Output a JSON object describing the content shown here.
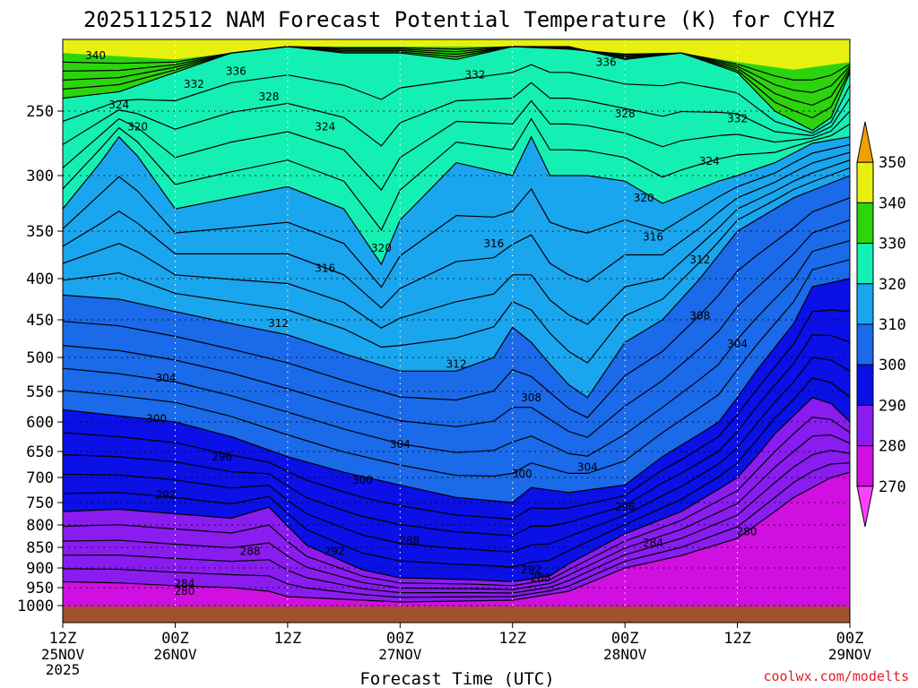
{
  "chart_data": {
    "type": "contour-filled",
    "title": "2025112512 NAM Forecast Potential Temperature (K) for CYHZ",
    "xlabel": "Forecast Time (UTC)",
    "ylabel": "",
    "credit": "coolwx.com/modelts",
    "x_range_hours": [
      0,
      84
    ],
    "y_range_hpa": [
      200,
      1000
    ],
    "y_ticks": [
      250,
      300,
      350,
      400,
      450,
      500,
      550,
      600,
      650,
      700,
      750,
      800,
      850,
      900,
      950,
      1000
    ],
    "x_ticks": [
      {
        "hour": 0,
        "time": "12Z",
        "date": "25NOV",
        "year": "2025"
      },
      {
        "hour": 12,
        "time": "00Z",
        "date": "26NOV",
        "year": ""
      },
      {
        "hour": 24,
        "time": "12Z",
        "date": "",
        "year": ""
      },
      {
        "hour": 36,
        "time": "00Z",
        "date": "27NOV",
        "year": ""
      },
      {
        "hour": 48,
        "time": "12Z",
        "date": "",
        "year": ""
      },
      {
        "hour": 60,
        "time": "00Z",
        "date": "28NOV",
        "year": ""
      },
      {
        "hour": 72,
        "time": "12Z",
        "date": "",
        "year": ""
      },
      {
        "hour": 84,
        "time": "00Z",
        "date": "29NOV",
        "year": ""
      }
    ],
    "colorbar": {
      "levels": [
        270,
        280,
        290,
        300,
        310,
        320,
        330,
        340,
        350
      ],
      "bands": [
        {
          "from": 260,
          "to": 270,
          "color": "#ff40ff"
        },
        {
          "from": 270,
          "to": 280,
          "color": "#d010e0"
        },
        {
          "from": 280,
          "to": 290,
          "color": "#8a1cf0"
        },
        {
          "from": 290,
          "to": 300,
          "color": "#0a10e6"
        },
        {
          "from": 300,
          "to": 310,
          "color": "#1a6aea"
        },
        {
          "from": 310,
          "to": 320,
          "color": "#1aa6ee"
        },
        {
          "from": 320,
          "to": 330,
          "color": "#14f0b4"
        },
        {
          "from": 330,
          "to": 340,
          "color": "#2cd40e"
        },
        {
          "from": 340,
          "to": 350,
          "color": "#e8f010"
        },
        {
          "from": 350,
          "to": 360,
          "color": "#f2a000"
        }
      ]
    },
    "contour_interval": 2,
    "series": [
      {
        "name": "theta_280",
        "values": [
          [
            0,
            935
          ],
          [
            6,
            938
          ],
          [
            12,
            945
          ],
          [
            18,
            950
          ],
          [
            22,
            960
          ],
          [
            24,
            975
          ],
          [
            36,
            990
          ],
          [
            48,
            985
          ],
          [
            54,
            960
          ],
          [
            60,
            900
          ],
          [
            66,
            870
          ],
          [
            72,
            830
          ],
          [
            78,
            740
          ],
          [
            82,
            700
          ],
          [
            84,
            690
          ]
        ]
      },
      {
        "name": "theta_290",
        "values": [
          [
            0,
            770
          ],
          [
            6,
            765
          ],
          [
            12,
            775
          ],
          [
            18,
            785
          ],
          [
            22,
            760
          ],
          [
            26,
            845
          ],
          [
            32,
            905
          ],
          [
            36,
            925
          ],
          [
            44,
            930
          ],
          [
            48,
            935
          ],
          [
            52,
            920
          ],
          [
            54,
            890
          ],
          [
            60,
            820
          ],
          [
            66,
            770
          ],
          [
            72,
            700
          ],
          [
            76,
            620
          ],
          [
            80,
            560
          ],
          [
            82,
            570
          ],
          [
            84,
            600
          ]
        ]
      },
      {
        "name": "theta_300",
        "values": [
          [
            0,
            580
          ],
          [
            6,
            590
          ],
          [
            12,
            600
          ],
          [
            18,
            625
          ],
          [
            24,
            660
          ],
          [
            30,
            690
          ],
          [
            36,
            715
          ],
          [
            42,
            740
          ],
          [
            48,
            750
          ],
          [
            50,
            720
          ],
          [
            54,
            730
          ],
          [
            60,
            715
          ],
          [
            64,
            660
          ],
          [
            70,
            600
          ],
          [
            74,
            520
          ],
          [
            78,
            455
          ],
          [
            80,
            410
          ],
          [
            84,
            400
          ]
        ]
      },
      {
        "name": "theta_310",
        "values": [
          [
            0,
            420
          ],
          [
            6,
            425
          ],
          [
            12,
            440
          ],
          [
            18,
            455
          ],
          [
            24,
            470
          ],
          [
            30,
            495
          ],
          [
            36,
            520
          ],
          [
            42,
            520
          ],
          [
            46,
            500
          ],
          [
            48,
            460
          ],
          [
            50,
            480
          ],
          [
            54,
            540
          ],
          [
            56,
            560
          ],
          [
            60,
            480
          ],
          [
            64,
            450
          ],
          [
            68,
            400
          ],
          [
            72,
            350
          ],
          [
            78,
            320
          ],
          [
            84,
            300
          ]
        ]
      },
      {
        "name": "theta_320",
        "values": [
          [
            0,
            330
          ],
          [
            4,
            290
          ],
          [
            6,
            270
          ],
          [
            8,
            285
          ],
          [
            12,
            330
          ],
          [
            18,
            320
          ],
          [
            24,
            310
          ],
          [
            30,
            330
          ],
          [
            34,
            385
          ],
          [
            36,
            340
          ],
          [
            42,
            290
          ],
          [
            48,
            300
          ],
          [
            50,
            270
          ],
          [
            52,
            300
          ],
          [
            56,
            300
          ],
          [
            60,
            305
          ],
          [
            64,
            325
          ],
          [
            70,
            305
          ],
          [
            76,
            290
          ],
          [
            80,
            275
          ],
          [
            84,
            270
          ]
        ]
      },
      {
        "name": "theta_330",
        "values": [
          [
            0,
            240
          ],
          [
            6,
            235
          ],
          [
            12,
            220
          ],
          [
            18,
            205
          ],
          [
            24,
            200
          ],
          [
            30,
            205
          ],
          [
            36,
            205
          ],
          [
            42,
            210
          ],
          [
            48,
            200
          ],
          [
            54,
            200
          ],
          [
            60,
            210
          ],
          [
            66,
            205
          ],
          [
            72,
            220
          ],
          [
            76,
            250
          ],
          [
            80,
            265
          ],
          [
            82,
            255
          ],
          [
            84,
            220
          ]
        ]
      },
      {
        "name": "theta_340",
        "values": [
          [
            0,
            205
          ],
          [
            12,
            210
          ],
          [
            24,
            200
          ],
          [
            36,
            200
          ],
          [
            48,
            200
          ],
          [
            60,
            205
          ],
          [
            66,
            205
          ],
          [
            72,
            212
          ],
          [
            78,
            218
          ],
          [
            84,
            212
          ]
        ]
      }
    ],
    "contour_labels": [
      {
        "text": "340",
        "hour": 3.5,
        "hpa": 207
      },
      {
        "text": "336",
        "hour": 18.5,
        "hpa": 219
      },
      {
        "text": "332",
        "hour": 14,
        "hpa": 229
      },
      {
        "text": "328",
        "hour": 22,
        "hpa": 239
      },
      {
        "text": "324",
        "hour": 6,
        "hpa": 245
      },
      {
        "text": "320",
        "hour": 8,
        "hpa": 262
      },
      {
        "text": "324",
        "hour": 28,
        "hpa": 262
      },
      {
        "text": "332",
        "hour": 44,
        "hpa": 222
      },
      {
        "text": "336",
        "hour": 58,
        "hpa": 212
      },
      {
        "text": "328",
        "hour": 60,
        "hpa": 252
      },
      {
        "text": "332",
        "hour": 72,
        "hpa": 256
      },
      {
        "text": "324",
        "hour": 69,
        "hpa": 289
      },
      {
        "text": "320",
        "hour": 62,
        "hpa": 320
      },
      {
        "text": "320",
        "hour": 34,
        "hpa": 368
      },
      {
        "text": "316",
        "hour": 46,
        "hpa": 363
      },
      {
        "text": "316",
        "hour": 63,
        "hpa": 356
      },
      {
        "text": "312",
        "hour": 68,
        "hpa": 380
      },
      {
        "text": "316",
        "hour": 28,
        "hpa": 389
      },
      {
        "text": "312",
        "hour": 23,
        "hpa": 455
      },
      {
        "text": "308",
        "hour": 68,
        "hpa": 445
      },
      {
        "text": "304",
        "hour": 72,
        "hpa": 482
      },
      {
        "text": "312",
        "hour": 42,
        "hpa": 510
      },
      {
        "text": "304",
        "hour": 11,
        "hpa": 530
      },
      {
        "text": "308",
        "hour": 50,
        "hpa": 560
      },
      {
        "text": "300",
        "hour": 10,
        "hpa": 595
      },
      {
        "text": "304",
        "hour": 36,
        "hpa": 638
      },
      {
        "text": "304",
        "hour": 56,
        "hpa": 680
      },
      {
        "text": "296",
        "hour": 17,
        "hpa": 660
      },
      {
        "text": "300",
        "hour": 32,
        "hpa": 705
      },
      {
        "text": "300",
        "hour": 49,
        "hpa": 693
      },
      {
        "text": "292",
        "hour": 11,
        "hpa": 735
      },
      {
        "text": "296",
        "hour": 60,
        "hpa": 760
      },
      {
        "text": "288",
        "hour": 20,
        "hpa": 860
      },
      {
        "text": "292",
        "hour": 29,
        "hpa": 860
      },
      {
        "text": "288",
        "hour": 37,
        "hpa": 835
      },
      {
        "text": "284",
        "hour": 63,
        "hpa": 840
      },
      {
        "text": "280",
        "hour": 73,
        "hpa": 815
      },
      {
        "text": "292",
        "hour": 50,
        "hpa": 905
      },
      {
        "text": "288",
        "hour": 51,
        "hpa": 925
      },
      {
        "text": "284",
        "hour": 13,
        "hpa": 940
      },
      {
        "text": "280",
        "hour": 13,
        "hpa": 960
      }
    ],
    "colors": {
      "ground": "#a0522d",
      "contour_line": "#000000",
      "grid": "#000000",
      "credit": "#e0202a"
    }
  }
}
